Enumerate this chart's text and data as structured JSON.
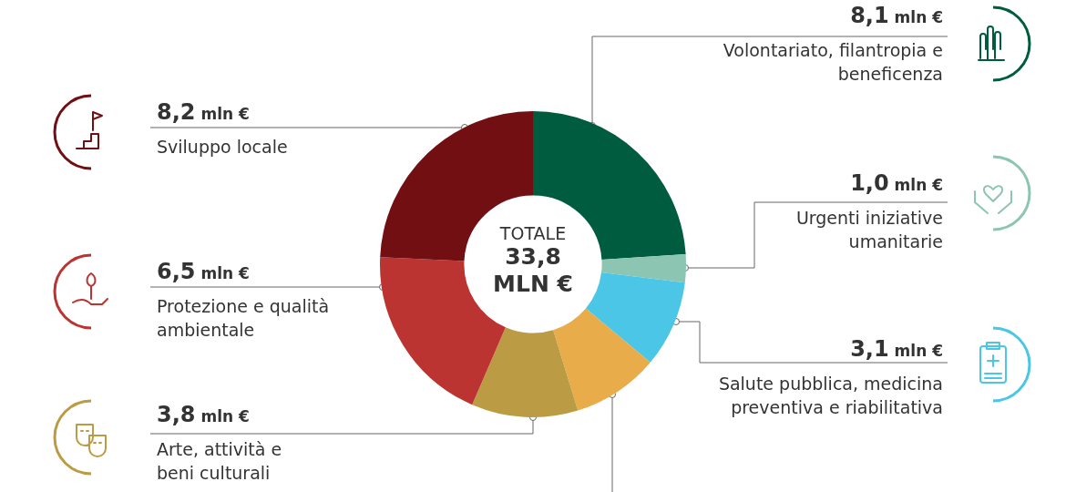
{
  "chart_data": {
    "type": "donut",
    "title": "TOTALE",
    "subtitle": "33,8 MLN €",
    "categories": [
      "Volontariato, filantropia e beneficenza",
      "Urgenti iniziative umanitarie",
      "Salute pubblica, medicina preventiva e riabilitativa",
      null,
      "Arte, attività e beni culturali",
      "Protezione e qualità ambientale",
      "Sviluppo locale"
    ],
    "values": [
      8.1,
      1.0,
      3.1,
      3.1,
      3.8,
      6.5,
      8.2
    ],
    "value_labels": [
      "8,1 mln €",
      "1,0 mln €",
      "3,1 mln €",
      null,
      "3,8 mln €",
      "6,5 mln €",
      "8,2 mln €"
    ],
    "colors": [
      "#005c3f",
      "#8cc5b2",
      "#4bc6e6",
      "#e8ac4a",
      "#bb9c45",
      "#bc3431",
      "#720f12"
    ]
  }
}
